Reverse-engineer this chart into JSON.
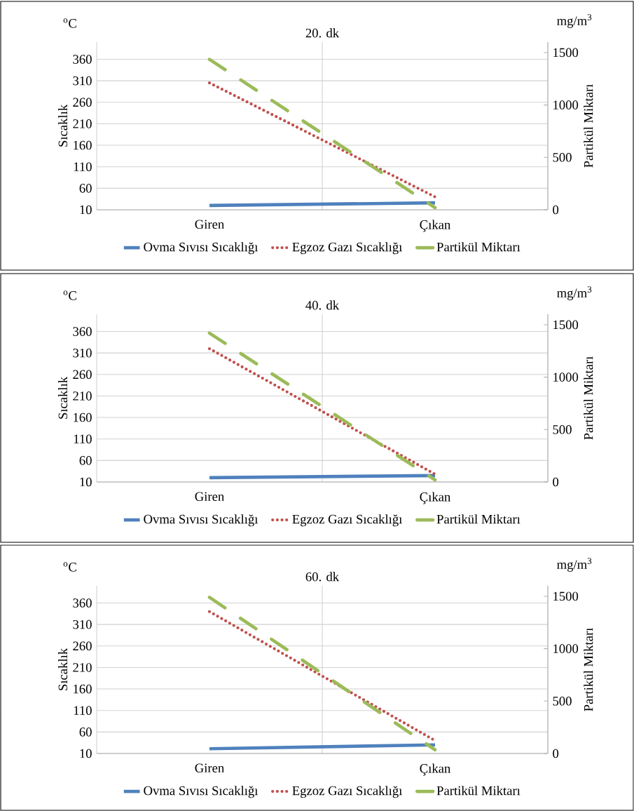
{
  "chart_data": [
    {
      "type": "line",
      "title": "20. dk",
      "ylabel": "Sıcaklık",
      "y2label": "Partikül Miktarı",
      "annotations": [
        "$^{o}$C",
        "mg/m$^{3}$"
      ],
      "categories": [
        "Giren",
        "Çıkan"
      ],
      "series": [
        {
          "name": "Ovma Sıvısı Sıcaklığı",
          "color": "#4f81bd",
          "line_style": "solid",
          "values": [
            20,
            26
          ]
        },
        {
          "name": "Egzoz Gazı Sıcaklığı",
          "color": "#c0504d",
          "line_style": "dotted",
          "values": [
            305,
            40
          ]
        },
        {
          "name": "Partikül Miktarı",
          "color": "#9bbb59",
          "line_style": "dashed",
          "axis": "y2",
          "values": [
            1435,
            20
          ]
        }
      ],
      "ylim": [
        10,
        400
      ],
      "yticks": [
        10,
        60,
        110,
        160,
        210,
        260,
        310,
        360
      ],
      "y2lim": [
        0,
        1600
      ],
      "y2ticks": [
        0,
        500,
        1000,
        1500
      ],
      "grid": true,
      "legend": "bottom"
    },
    {
      "type": "line",
      "title": "40. dk",
      "ylabel": "Sıcaklık",
      "y2label": "Partikül Miktarı",
      "annotations": [
        "$^{o}$C",
        "mg/m$^{3}$"
      ],
      "categories": [
        "Giren",
        "Çıkan"
      ],
      "series": [
        {
          "name": "Ovma Sıvısı Sıcaklığı",
          "color": "#4f81bd",
          "line_style": "solid",
          "values": [
            20,
            25
          ]
        },
        {
          "name": "Egzoz Gazı Sıcaklığı",
          "color": "#c0504d",
          "line_style": "dotted",
          "values": [
            320,
            28
          ]
        },
        {
          "name": "Partikül Miktarı",
          "color": "#9bbb59",
          "line_style": "dashed",
          "axis": "y2",
          "values": [
            1420,
            20
          ]
        }
      ],
      "ylim": [
        10,
        400
      ],
      "yticks": [
        10,
        60,
        110,
        160,
        210,
        260,
        310,
        360
      ],
      "y2lim": [
        0,
        1600
      ],
      "y2ticks": [
        0,
        500,
        1000,
        1500
      ],
      "grid": true,
      "legend": "bottom"
    },
    {
      "type": "line",
      "title": "60. dk",
      "ylabel": "Sıcaklık",
      "y2label": "Partikül Miktarı",
      "annotations": [
        "$^{o}$C",
        "mg/m$^{3}$"
      ],
      "categories": [
        "Giren",
        "Çıkan"
      ],
      "series": [
        {
          "name": "Ovma Sıvısı Sıcaklığı",
          "color": "#4f81bd",
          "line_style": "solid",
          "values": [
            21,
            30
          ]
        },
        {
          "name": "Egzoz Gazı Sıcaklığı",
          "color": "#c0504d",
          "line_style": "dotted",
          "values": [
            340,
            40
          ]
        },
        {
          "name": "Partikül Miktarı",
          "color": "#9bbb59",
          "line_style": "dashed",
          "axis": "y2",
          "values": [
            1490,
            35
          ]
        }
      ],
      "ylim": [
        10,
        400
      ],
      "yticks": [
        10,
        60,
        110,
        160,
        210,
        260,
        310,
        360
      ],
      "y2lim": [
        0,
        1600
      ],
      "y2ticks": [
        0,
        500,
        1000,
        1500
      ],
      "grid": true,
      "legend": "bottom"
    }
  ]
}
